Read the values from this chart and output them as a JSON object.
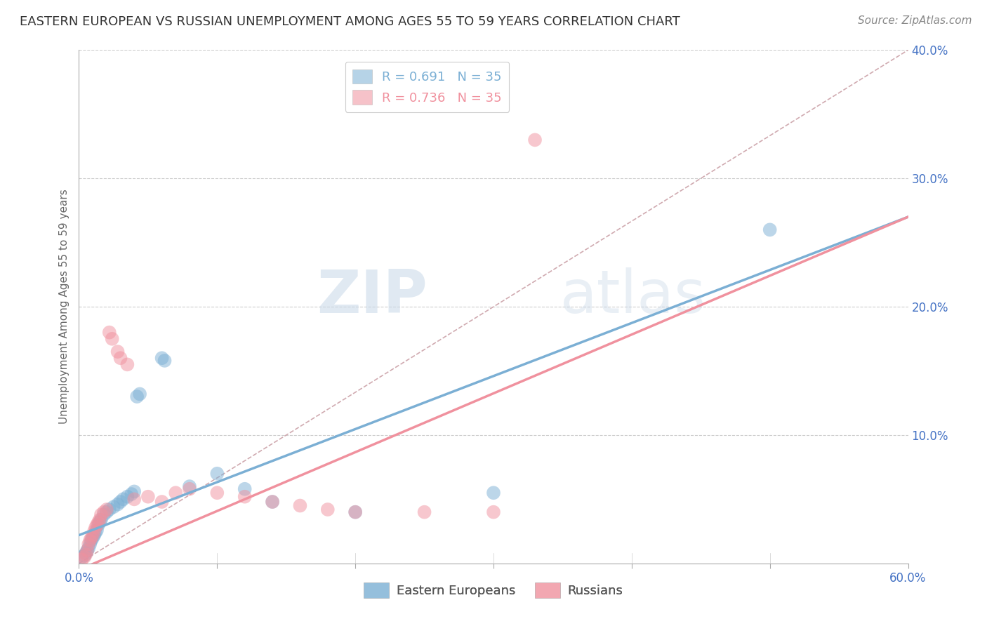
{
  "title": "EASTERN EUROPEAN VS RUSSIAN UNEMPLOYMENT AMONG AGES 55 TO 59 YEARS CORRELATION CHART",
  "source": "Source: ZipAtlas.com",
  "ylabel": "Unemployment Among Ages 55 to 59 years",
  "xlim": [
    0.0,
    0.6
  ],
  "ylim": [
    0.0,
    0.4
  ],
  "xticks_minor": [
    0.1,
    0.2,
    0.3,
    0.4,
    0.5
  ],
  "xtick_left_label": "0.0%",
  "xtick_right_label": "60.0%",
  "yticks": [
    0.1,
    0.2,
    0.3,
    0.4
  ],
  "yticklabels": [
    "10.0%",
    "20.0%",
    "30.0%",
    "40.0%"
  ],
  "legend_r_entries": [
    {
      "label": "R = 0.691   N = 35",
      "color": "#7bafd4"
    },
    {
      "label": "R = 0.736   N = 35",
      "color": "#f0919e"
    }
  ],
  "legend_labels": [
    "Eastern Europeans",
    "Russians"
  ],
  "blue_color": "#7bafd4",
  "pink_color": "#f0919e",
  "blue_scatter": [
    [
      0.002,
      0.005
    ],
    [
      0.004,
      0.006
    ],
    [
      0.005,
      0.008
    ],
    [
      0.006,
      0.01
    ],
    [
      0.007,
      0.012
    ],
    [
      0.008,
      0.015
    ],
    [
      0.009,
      0.018
    ],
    [
      0.01,
      0.02
    ],
    [
      0.011,
      0.022
    ],
    [
      0.012,
      0.024
    ],
    [
      0.013,
      0.026
    ],
    [
      0.014,
      0.03
    ],
    [
      0.015,
      0.032
    ],
    [
      0.016,
      0.034
    ],
    [
      0.018,
      0.038
    ],
    [
      0.02,
      0.04
    ],
    [
      0.022,
      0.042
    ],
    [
      0.025,
      0.044
    ],
    [
      0.028,
      0.046
    ],
    [
      0.03,
      0.048
    ],
    [
      0.032,
      0.05
    ],
    [
      0.035,
      0.052
    ],
    [
      0.038,
      0.054
    ],
    [
      0.04,
      0.056
    ],
    [
      0.042,
      0.13
    ],
    [
      0.044,
      0.132
    ],
    [
      0.06,
      0.16
    ],
    [
      0.062,
      0.158
    ],
    [
      0.08,
      0.06
    ],
    [
      0.1,
      0.07
    ],
    [
      0.12,
      0.058
    ],
    [
      0.14,
      0.048
    ],
    [
      0.2,
      0.04
    ],
    [
      0.3,
      0.055
    ],
    [
      0.5,
      0.26
    ]
  ],
  "pink_scatter": [
    [
      0.002,
      0.003
    ],
    [
      0.004,
      0.005
    ],
    [
      0.005,
      0.007
    ],
    [
      0.006,
      0.01
    ],
    [
      0.007,
      0.015
    ],
    [
      0.008,
      0.018
    ],
    [
      0.009,
      0.02
    ],
    [
      0.01,
      0.022
    ],
    [
      0.011,
      0.025
    ],
    [
      0.012,
      0.028
    ],
    [
      0.013,
      0.03
    ],
    [
      0.014,
      0.032
    ],
    [
      0.015,
      0.034
    ],
    [
      0.016,
      0.038
    ],
    [
      0.018,
      0.04
    ],
    [
      0.02,
      0.042
    ],
    [
      0.022,
      0.18
    ],
    [
      0.024,
      0.175
    ],
    [
      0.028,
      0.165
    ],
    [
      0.03,
      0.16
    ],
    [
      0.035,
      0.155
    ],
    [
      0.04,
      0.05
    ],
    [
      0.05,
      0.052
    ],
    [
      0.06,
      0.048
    ],
    [
      0.07,
      0.055
    ],
    [
      0.08,
      0.058
    ],
    [
      0.1,
      0.055
    ],
    [
      0.12,
      0.052
    ],
    [
      0.14,
      0.048
    ],
    [
      0.16,
      0.045
    ],
    [
      0.18,
      0.042
    ],
    [
      0.2,
      0.04
    ],
    [
      0.25,
      0.04
    ],
    [
      0.3,
      0.04
    ],
    [
      0.33,
      0.33
    ]
  ],
  "blue_line": {
    "x0": 0.0,
    "y0": 0.022,
    "x1": 0.6,
    "y1": 0.27
  },
  "pink_line": {
    "x0": 0.0,
    "y0": -0.005,
    "x1": 0.6,
    "y1": 0.27
  },
  "diag_line": {
    "x0": 0.0,
    "y0": 0.0,
    "x1": 0.6,
    "y1": 0.4
  },
  "watermark_zip": "ZIP",
  "watermark_atlas": "atlas",
  "title_fontsize": 13,
  "axis_label_fontsize": 11,
  "tick_fontsize": 12,
  "source_fontsize": 11,
  "legend_fontsize": 13
}
